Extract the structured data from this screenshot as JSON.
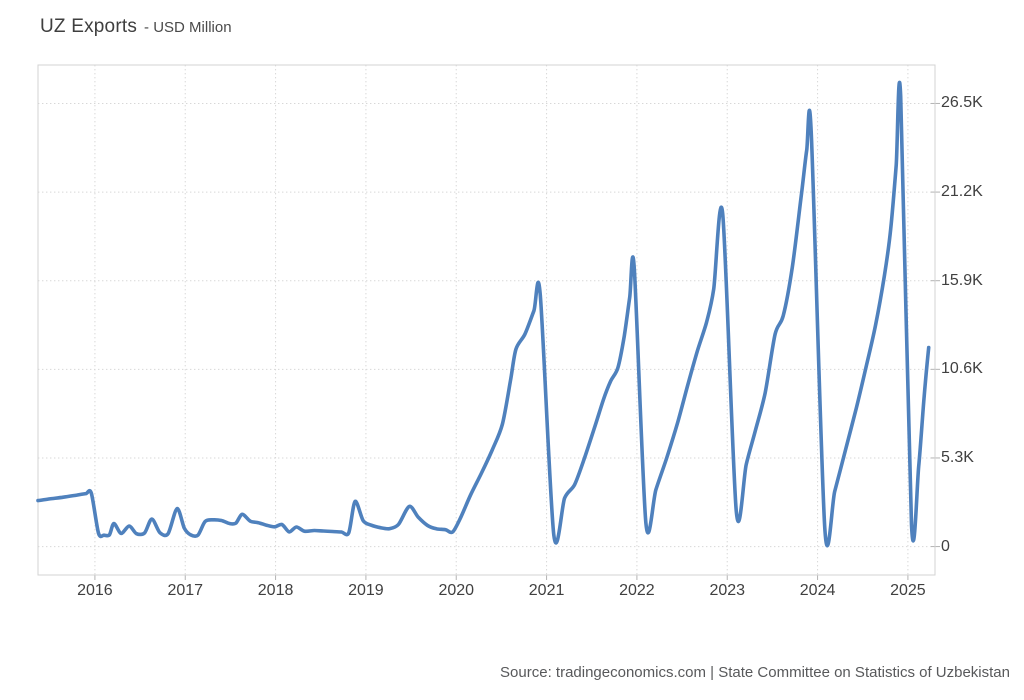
{
  "header": {
    "title": "UZ Exports",
    "subtitle": "- USD Million"
  },
  "footer": {
    "source": "Source: tradingeconomics.com | State Committee on Statistics of Uzbekistan"
  },
  "chart_data": {
    "type": "line",
    "title": "UZ Exports",
    "ylabel": "USD Million",
    "legend": false,
    "grid": true,
    "y_axis_side": "right",
    "line_color": "#4f81bd",
    "grid_color": "#d7d7d7",
    "border_color": "#d3d3d3",
    "tick_color": "#b3b3b3",
    "label_color": "#404040",
    "x_range": [
      2015.37,
      2025.3
    ],
    "y_range": [
      -1700,
      28800
    ],
    "x_ticks": [
      2016,
      2017,
      2018,
      2019,
      2020,
      2021,
      2022,
      2023,
      2024,
      2025
    ],
    "x_tick_labels": [
      "2016",
      "2017",
      "2018",
      "2019",
      "2020",
      "2021",
      "2022",
      "2023",
      "2024",
      "2025"
    ],
    "y_ticks": [
      0,
      5300,
      10600,
      15900,
      21200,
      26500
    ],
    "y_tick_labels": [
      "0",
      "5.3K",
      "10.6K",
      "15.9K",
      "21.2K",
      "26.5K"
    ],
    "series": [
      {
        "name": "UZ Exports (USD Million)",
        "points": [
          [
            2015.37,
            2750
          ],
          [
            2015.5,
            2850
          ],
          [
            2015.65,
            2950
          ],
          [
            2015.8,
            3080
          ],
          [
            2015.9,
            3170
          ],
          [
            2015.96,
            3200
          ],
          [
            2016.04,
            800
          ],
          [
            2016.1,
            680
          ],
          [
            2016.16,
            700
          ],
          [
            2016.21,
            1380
          ],
          [
            2016.29,
            790
          ],
          [
            2016.38,
            1230
          ],
          [
            2016.46,
            770
          ],
          [
            2016.55,
            820
          ],
          [
            2016.63,
            1650
          ],
          [
            2016.72,
            830
          ],
          [
            2016.81,
            770
          ],
          [
            2016.91,
            2270
          ],
          [
            2016.99,
            1100
          ],
          [
            2017.06,
            700
          ],
          [
            2017.14,
            680
          ],
          [
            2017.22,
            1500
          ],
          [
            2017.31,
            1600
          ],
          [
            2017.4,
            1560
          ],
          [
            2017.49,
            1380
          ],
          [
            2017.56,
            1400
          ],
          [
            2017.63,
            1930
          ],
          [
            2017.72,
            1520
          ],
          [
            2017.81,
            1430
          ],
          [
            2017.9,
            1280
          ],
          [
            2017.99,
            1180
          ],
          [
            2018.07,
            1320
          ],
          [
            2018.15,
            880
          ],
          [
            2018.23,
            1170
          ],
          [
            2018.32,
            920
          ],
          [
            2018.43,
            960
          ],
          [
            2018.53,
            930
          ],
          [
            2018.63,
            900
          ],
          [
            2018.73,
            870
          ],
          [
            2018.81,
            820
          ],
          [
            2018.88,
            2700
          ],
          [
            2018.97,
            1550
          ],
          [
            2019.06,
            1280
          ],
          [
            2019.16,
            1130
          ],
          [
            2019.26,
            1070
          ],
          [
            2019.36,
            1320
          ],
          [
            2019.48,
            2400
          ],
          [
            2019.58,
            1750
          ],
          [
            2019.68,
            1270
          ],
          [
            2019.78,
            1060
          ],
          [
            2019.88,
            1010
          ],
          [
            2019.96,
            870
          ],
          [
            2020.05,
            1750
          ],
          [
            2020.16,
            3100
          ],
          [
            2020.28,
            4400
          ],
          [
            2020.4,
            5800
          ],
          [
            2020.51,
            7300
          ],
          [
            2020.6,
            9900
          ],
          [
            2020.66,
            11800
          ],
          [
            2020.76,
            12700
          ],
          [
            2020.86,
            14100
          ],
          [
            2020.93,
            15100
          ],
          [
            2021.08,
            700
          ],
          [
            2021.2,
            2900
          ],
          [
            2021.31,
            3700
          ],
          [
            2021.42,
            5300
          ],
          [
            2021.53,
            7100
          ],
          [
            2021.63,
            8800
          ],
          [
            2021.71,
            9900
          ],
          [
            2021.79,
            10700
          ],
          [
            2021.86,
            12600
          ],
          [
            2021.92,
            14900
          ],
          [
            2021.97,
            16700
          ],
          [
            2022.1,
            1400
          ],
          [
            2022.21,
            3400
          ],
          [
            2022.33,
            5300
          ],
          [
            2022.45,
            7400
          ],
          [
            2022.56,
            9600
          ],
          [
            2022.67,
            11700
          ],
          [
            2022.77,
            13400
          ],
          [
            2022.85,
            15400
          ],
          [
            2022.95,
            19900
          ],
          [
            2023.1,
            2100
          ],
          [
            2023.21,
            4900
          ],
          [
            2023.31,
            6900
          ],
          [
            2023.42,
            9200
          ],
          [
            2023.53,
            12700
          ],
          [
            2023.62,
            13800
          ],
          [
            2023.72,
            16700
          ],
          [
            2023.82,
            21000
          ],
          [
            2023.88,
            23700
          ],
          [
            2023.93,
            24800
          ],
          [
            2024.08,
            1100
          ],
          [
            2024.19,
            3300
          ],
          [
            2024.31,
            5800
          ],
          [
            2024.43,
            8300
          ],
          [
            2024.54,
            10800
          ],
          [
            2024.64,
            13200
          ],
          [
            2024.74,
            16200
          ],
          [
            2024.81,
            19000
          ],
          [
            2024.87,
            22800
          ],
          [
            2024.92,
            26900
          ],
          [
            2025.04,
            1300
          ],
          [
            2025.12,
            4800
          ],
          [
            2025.18,
            9000
          ],
          [
            2025.23,
            11900
          ]
        ]
      }
    ]
  }
}
